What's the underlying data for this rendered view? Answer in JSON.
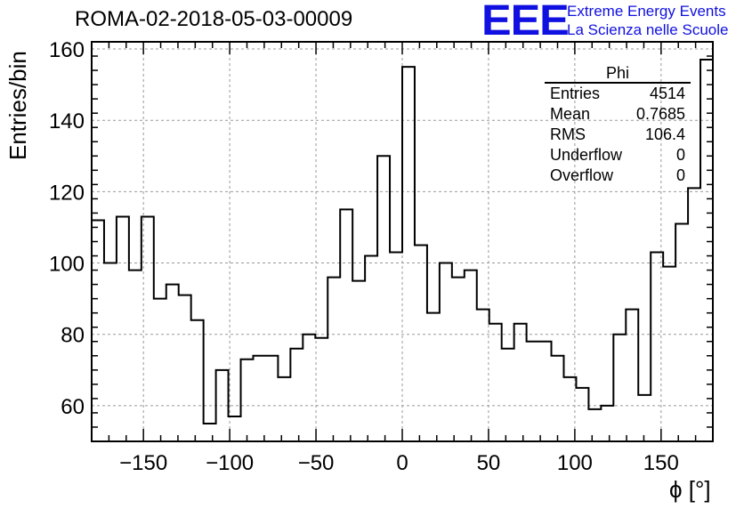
{
  "header": {
    "run_title": "ROMA-02-2018-05-03-00009",
    "logo_text": "EEE",
    "logo_line1": "Extreme Energy Events",
    "logo_line2": "La Scienza nelle Scuole"
  },
  "stats_box": {
    "title": "Phi",
    "rows": [
      {
        "label": "Entries",
        "value": "4514"
      },
      {
        "label": "Mean",
        "value": "0.7685"
      },
      {
        "label": "RMS",
        "value": "106.4"
      },
      {
        "label": "Underflow",
        "value": "0"
      },
      {
        "label": "Overflow",
        "value": "0"
      }
    ]
  },
  "colors": {
    "line": "#000000",
    "grid": "#999999",
    "logo": "#1010e0"
  },
  "chart_data": {
    "type": "bar",
    "style": "step-histogram",
    "xlabel": "ϕ [°]",
    "ylabel": "Entries/bin",
    "xlim": [
      -180,
      180
    ],
    "ylim": [
      50,
      162
    ],
    "bin_width": 7.2,
    "grid": true,
    "x_ticks": [
      -150,
      -100,
      -50,
      0,
      50,
      100,
      150
    ],
    "x_tick_labels": [
      "−150",
      "−100",
      "−50",
      "0",
      "50",
      "100",
      "150"
    ],
    "y_ticks": [
      60,
      80,
      100,
      120,
      140,
      160
    ],
    "y_tick_labels": [
      "60",
      "80",
      "100",
      "120",
      "140",
      "160"
    ],
    "values": [
      112,
      100,
      113,
      98,
      113,
      90,
      94,
      91,
      84,
      55,
      70,
      57,
      73,
      74,
      74,
      68,
      76,
      80,
      79,
      96,
      115,
      95,
      102,
      130,
      103,
      155,
      105,
      86,
      100,
      96,
      98,
      87,
      83,
      76,
      83,
      78,
      78,
      74,
      68,
      65,
      59,
      60,
      80,
      87,
      63,
      103,
      99,
      111,
      121,
      157
    ]
  }
}
